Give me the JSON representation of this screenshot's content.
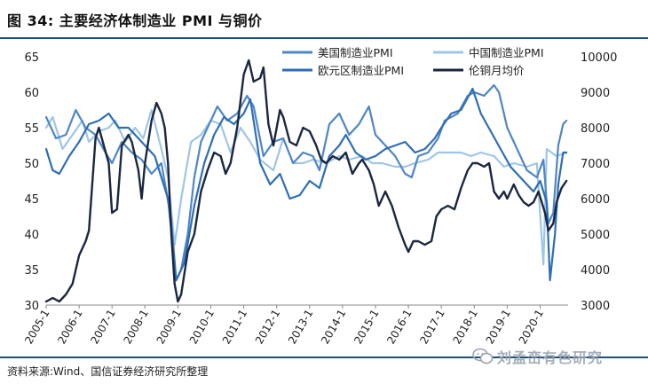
{
  "header": {
    "title": "图 34:  主要经济体制造业 PMI 与铜价"
  },
  "footer": {
    "source": "资料来源:Wind、国信证券经济研究所整理"
  },
  "watermark": {
    "text": "刘孟峦有色研究",
    "icon": "wechat-icon"
  },
  "colors": {
    "us": "#4f86c6",
    "china": "#9fc5e8",
    "euro": "#2e6eb5",
    "copper": "#1a2740",
    "rule": "#1f4e79"
  },
  "chart_data": {
    "type": "line",
    "x_tick_labels": [
      "2005-1",
      "2006-1",
      "2007-1",
      "2008-1",
      "2009-1",
      "2010-1",
      "2011-1",
      "2012-1",
      "2013-1",
      "2014-1",
      "2015-1",
      "2016-1",
      "2017-1",
      "2018-1",
      "2019-1",
      "2020-1"
    ],
    "x_range": [
      2005.0,
      2020.85
    ],
    "y_left": {
      "min": 30,
      "max": 65,
      "ticks": [
        30,
        35,
        40,
        45,
        50,
        55,
        60,
        65
      ]
    },
    "y_right": {
      "min": 3000,
      "max": 10000,
      "ticks": [
        3000,
        4000,
        5000,
        6000,
        7000,
        8000,
        9000,
        10000
      ]
    },
    "grid": false,
    "legend": "top",
    "series": [
      {
        "name": "美国制造业PMI",
        "axis": "left",
        "color_key": "us",
        "points": [
          [
            2005.0,
            56.5
          ],
          [
            2005.3,
            53.5
          ],
          [
            2005.6,
            54.0
          ],
          [
            2005.9,
            57.5
          ],
          [
            2006.2,
            55.0
          ],
          [
            2006.5,
            54.0
          ],
          [
            2006.8,
            51.5
          ],
          [
            2007.0,
            50.0
          ],
          [
            2007.3,
            53.0
          ],
          [
            2007.6,
            51.5
          ],
          [
            2007.9,
            50.5
          ],
          [
            2008.2,
            48.5
          ],
          [
            2008.5,
            50.0
          ],
          [
            2008.8,
            42.0
          ],
          [
            2008.95,
            33.5
          ],
          [
            2009.1,
            35.0
          ],
          [
            2009.3,
            40.0
          ],
          [
            2009.5,
            48.0
          ],
          [
            2009.7,
            53.0
          ],
          [
            2009.9,
            55.0
          ],
          [
            2010.2,
            58.0
          ],
          [
            2010.5,
            56.0
          ],
          [
            2010.8,
            57.0
          ],
          [
            2011.1,
            59.5
          ],
          [
            2011.3,
            58.0
          ],
          [
            2011.6,
            51.0
          ],
          [
            2011.9,
            53.0
          ],
          [
            2012.2,
            53.5
          ],
          [
            2012.5,
            50.0
          ],
          [
            2012.8,
            51.5
          ],
          [
            2013.1,
            51.0
          ],
          [
            2013.3,
            49.0
          ],
          [
            2013.6,
            55.5
          ],
          [
            2013.9,
            57.0
          ],
          [
            2014.2,
            54.0
          ],
          [
            2014.5,
            55.5
          ],
          [
            2014.8,
            58.0
          ],
          [
            2015.0,
            54.0
          ],
          [
            2015.3,
            52.5
          ],
          [
            2015.6,
            51.0
          ],
          [
            2015.9,
            48.5
          ],
          [
            2016.1,
            48.0
          ],
          [
            2016.3,
            51.0
          ],
          [
            2016.6,
            51.5
          ],
          [
            2016.9,
            53.5
          ],
          [
            2017.1,
            56.0
          ],
          [
            2017.5,
            57.0
          ],
          [
            2017.8,
            59.5
          ],
          [
            2018.0,
            60.0
          ],
          [
            2018.3,
            59.5
          ],
          [
            2018.6,
            61.0
          ],
          [
            2018.75,
            60.0
          ],
          [
            2019.0,
            55.0
          ],
          [
            2019.3,
            52.0
          ],
          [
            2019.6,
            49.0
          ],
          [
            2019.9,
            48.0
          ],
          [
            2020.1,
            50.5
          ],
          [
            2020.25,
            41.5
          ],
          [
            2020.4,
            43.0
          ],
          [
            2020.55,
            52.5
          ],
          [
            2020.7,
            55.5
          ],
          [
            2020.8,
            56.0
          ]
        ]
      },
      {
        "name": "中国制造业PMI",
        "axis": "left",
        "color_key": "china",
        "points": [
          [
            2005.0,
            55.0
          ],
          [
            2005.2,
            56.5
          ],
          [
            2005.5,
            52.0
          ],
          [
            2005.8,
            54.0
          ],
          [
            2006.1,
            56.0
          ],
          [
            2006.3,
            53.0
          ],
          [
            2006.6,
            54.5
          ],
          [
            2006.9,
            55.0
          ],
          [
            2007.1,
            56.0
          ],
          [
            2007.4,
            53.0
          ],
          [
            2007.7,
            55.0
          ],
          [
            2007.95,
            53.5
          ],
          [
            2008.2,
            57.5
          ],
          [
            2008.5,
            52.0
          ],
          [
            2008.7,
            48.0
          ],
          [
            2008.9,
            38.5
          ],
          [
            2009.1,
            45.0
          ],
          [
            2009.4,
            53.0
          ],
          [
            2009.7,
            54.0
          ],
          [
            2010.0,
            56.0
          ],
          [
            2010.3,
            55.5
          ],
          [
            2010.6,
            51.5
          ],
          [
            2010.9,
            55.0
          ],
          [
            2011.2,
            53.0
          ],
          [
            2011.5,
            50.5
          ],
          [
            2011.9,
            49.0
          ],
          [
            2012.2,
            53.5
          ],
          [
            2012.5,
            50.0
          ],
          [
            2012.8,
            50.0
          ],
          [
            2013.1,
            50.5
          ],
          [
            2013.5,
            50.0
          ],
          [
            2013.9,
            51.0
          ],
          [
            2014.2,
            50.5
          ],
          [
            2014.6,
            51.0
          ],
          [
            2014.9,
            50.0
          ],
          [
            2015.2,
            50.0
          ],
          [
            2015.6,
            49.5
          ],
          [
            2015.9,
            49.5
          ],
          [
            2016.2,
            50.0
          ],
          [
            2016.6,
            50.5
          ],
          [
            2016.9,
            51.5
          ],
          [
            2017.2,
            51.5
          ],
          [
            2017.6,
            51.5
          ],
          [
            2017.9,
            51.0
          ],
          [
            2018.2,
            51.5
          ],
          [
            2018.6,
            51.0
          ],
          [
            2018.9,
            49.5
          ],
          [
            2019.2,
            50.0
          ],
          [
            2019.6,
            49.5
          ],
          [
            2019.9,
            50.0
          ],
          [
            2020.1,
            35.7
          ],
          [
            2020.2,
            52.0
          ],
          [
            2020.5,
            51.0
          ],
          [
            2020.8,
            51.5
          ]
        ]
      },
      {
        "name": "欧元区制造业PMI",
        "axis": "left",
        "color_key": "euro",
        "points": [
          [
            2005.0,
            52.0
          ],
          [
            2005.2,
            49.0
          ],
          [
            2005.4,
            48.5
          ],
          [
            2005.7,
            51.0
          ],
          [
            2006.0,
            53.0
          ],
          [
            2006.3,
            55.5
          ],
          [
            2006.6,
            56.0
          ],
          [
            2006.9,
            57.0
          ],
          [
            2007.2,
            55.0
          ],
          [
            2007.5,
            55.0
          ],
          [
            2007.8,
            53.5
          ],
          [
            2008.0,
            52.5
          ],
          [
            2008.3,
            51.0
          ],
          [
            2008.5,
            48.0
          ],
          [
            2008.7,
            45.0
          ],
          [
            2008.95,
            33.5
          ],
          [
            2009.2,
            36.0
          ],
          [
            2009.5,
            44.0
          ],
          [
            2009.8,
            50.0
          ],
          [
            2010.1,
            54.0
          ],
          [
            2010.4,
            56.5
          ],
          [
            2010.7,
            55.5
          ],
          [
            2011.0,
            57.0
          ],
          [
            2011.2,
            59.0
          ],
          [
            2011.5,
            50.0
          ],
          [
            2011.8,
            47.0
          ],
          [
            2012.1,
            48.5
          ],
          [
            2012.4,
            45.0
          ],
          [
            2012.7,
            45.5
          ],
          [
            2013.0,
            47.5
          ],
          [
            2013.3,
            46.5
          ],
          [
            2013.6,
            51.0
          ],
          [
            2013.9,
            52.5
          ],
          [
            2014.1,
            54.0
          ],
          [
            2014.4,
            51.5
          ],
          [
            2014.7,
            50.5
          ],
          [
            2015.0,
            51.0
          ],
          [
            2015.3,
            52.0
          ],
          [
            2015.6,
            52.5
          ],
          [
            2015.9,
            53.0
          ],
          [
            2016.2,
            51.5
          ],
          [
            2016.5,
            52.0
          ],
          [
            2016.8,
            53.5
          ],
          [
            2017.0,
            55.0
          ],
          [
            2017.3,
            57.0
          ],
          [
            2017.6,
            57.5
          ],
          [
            2017.95,
            60.5
          ],
          [
            2018.2,
            57.0
          ],
          [
            2018.5,
            54.5
          ],
          [
            2018.8,
            52.0
          ],
          [
            2019.1,
            49.5
          ],
          [
            2019.5,
            47.5
          ],
          [
            2019.8,
            46.0
          ],
          [
            2020.0,
            47.5
          ],
          [
            2020.2,
            44.5
          ],
          [
            2020.3,
            33.5
          ],
          [
            2020.45,
            40.0
          ],
          [
            2020.55,
            47.0
          ],
          [
            2020.7,
            51.5
          ],
          [
            2020.8,
            51.5
          ]
        ]
      },
      {
        "name": "伦铜月均价",
        "axis": "right",
        "color_key": "copper",
        "points": [
          [
            2005.0,
            3100
          ],
          [
            2005.2,
            3200
          ],
          [
            2005.4,
            3100
          ],
          [
            2005.6,
            3300
          ],
          [
            2005.8,
            3600
          ],
          [
            2006.0,
            4400
          ],
          [
            2006.2,
            4800
          ],
          [
            2006.3,
            5100
          ],
          [
            2006.5,
            7700
          ],
          [
            2006.6,
            8000
          ],
          [
            2006.75,
            7500
          ],
          [
            2006.9,
            7000
          ],
          [
            2007.0,
            5600
          ],
          [
            2007.15,
            5700
          ],
          [
            2007.3,
            7500
          ],
          [
            2007.5,
            7800
          ],
          [
            2007.6,
            7600
          ],
          [
            2007.8,
            6800
          ],
          [
            2007.9,
            6000
          ],
          [
            2008.0,
            7000
          ],
          [
            2008.2,
            8200
          ],
          [
            2008.35,
            8700
          ],
          [
            2008.5,
            8400
          ],
          [
            2008.6,
            8000
          ],
          [
            2008.7,
            7000
          ],
          [
            2008.8,
            5000
          ],
          [
            2008.9,
            3600
          ],
          [
            2009.0,
            3100
          ],
          [
            2009.1,
            3300
          ],
          [
            2009.3,
            4500
          ],
          [
            2009.5,
            5000
          ],
          [
            2009.7,
            6200
          ],
          [
            2009.9,
            6800
          ],
          [
            2010.1,
            7300
          ],
          [
            2010.3,
            7200
          ],
          [
            2010.45,
            6700
          ],
          [
            2010.6,
            7000
          ],
          [
            2010.8,
            8000
          ],
          [
            2011.0,
            9500
          ],
          [
            2011.15,
            9900
          ],
          [
            2011.3,
            9300
          ],
          [
            2011.5,
            9400
          ],
          [
            2011.6,
            9700
          ],
          [
            2011.75,
            8100
          ],
          [
            2011.9,
            7500
          ],
          [
            2012.1,
            8500
          ],
          [
            2012.2,
            8300
          ],
          [
            2012.4,
            7600
          ],
          [
            2012.6,
            7500
          ],
          [
            2012.8,
            8000
          ],
          [
            2013.0,
            7900
          ],
          [
            2013.2,
            7500
          ],
          [
            2013.35,
            7100
          ],
          [
            2013.5,
            7000
          ],
          [
            2013.7,
            7200
          ],
          [
            2013.9,
            7100
          ],
          [
            2014.1,
            7300
          ],
          [
            2014.3,
            6700
          ],
          [
            2014.5,
            7000
          ],
          [
            2014.6,
            7100
          ],
          [
            2014.8,
            6800
          ],
          [
            2014.95,
            6400
          ],
          [
            2015.1,
            5800
          ],
          [
            2015.3,
            6200
          ],
          [
            2015.5,
            5800
          ],
          [
            2015.7,
            5200
          ],
          [
            2015.9,
            4700
          ],
          [
            2016.0,
            4500
          ],
          [
            2016.15,
            4800
          ],
          [
            2016.3,
            4800
          ],
          [
            2016.5,
            4700
          ],
          [
            2016.7,
            4800
          ],
          [
            2016.85,
            5500
          ],
          [
            2017.0,
            5700
          ],
          [
            2017.2,
            5800
          ],
          [
            2017.4,
            5700
          ],
          [
            2017.6,
            6300
          ],
          [
            2017.8,
            6800
          ],
          [
            2017.95,
            7000
          ],
          [
            2018.1,
            7000
          ],
          [
            2018.3,
            6900
          ],
          [
            2018.45,
            7000
          ],
          [
            2018.6,
            6200
          ],
          [
            2018.75,
            6000
          ],
          [
            2018.9,
            6200
          ],
          [
            2019.0,
            6000
          ],
          [
            2019.2,
            6400
          ],
          [
            2019.35,
            6100
          ],
          [
            2019.5,
            5900
          ],
          [
            2019.65,
            5800
          ],
          [
            2019.8,
            5900
          ],
          [
            2019.95,
            6200
          ],
          [
            2020.05,
            5900
          ],
          [
            2020.15,
            5600
          ],
          [
            2020.25,
            5100
          ],
          [
            2020.4,
            5300
          ],
          [
            2020.5,
            5900
          ],
          [
            2020.65,
            6300
          ],
          [
            2020.8,
            6500
          ]
        ]
      }
    ]
  }
}
